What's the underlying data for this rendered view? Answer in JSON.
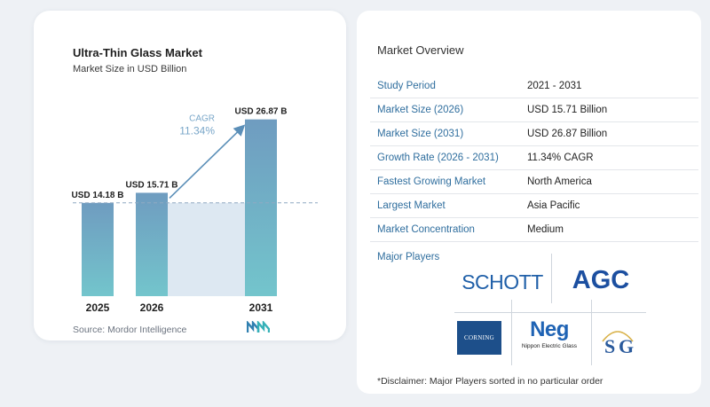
{
  "chart_data": {
    "type": "bar",
    "title": "Ultra-Thin Glass Market",
    "subtitle": "Market Size in USD Billion",
    "categories": [
      "2025",
      "2026",
      "2031"
    ],
    "values": [
      14.18,
      15.71,
      26.87
    ],
    "value_labels": [
      "USD 14.18 B",
      "USD 15.71 B",
      "USD 26.87 B"
    ],
    "ylim": [
      0,
      31
    ],
    "cagr_label": "CAGR",
    "cagr_value": "11.34%",
    "baseline_value": 14.18,
    "colors": {
      "bar_top": "#6f9cc0",
      "bar_bottom": "#73c5cc",
      "band": "#dde8f2",
      "arrow": "#5b8fb8",
      "cagr": "#7aa7c9"
    }
  },
  "source": "Source:  Mordor Intelligence",
  "source_logo_icon": "mordor-intelligence-logo-icon",
  "overview": {
    "title": "Market Overview",
    "rows": [
      {
        "key": "Study Period",
        "value": "2021 - 2031"
      },
      {
        "key": "Market Size (2026)",
        "value": "USD 15.71 Billion"
      },
      {
        "key": "Market Size (2031)",
        "value": "USD 26.87 Billion"
      },
      {
        "key": "Growth Rate (2026 - 2031)",
        "value": "11.34% CAGR"
      },
      {
        "key": "Fastest Growing Market",
        "value": "North America"
      },
      {
        "key": "Largest Market",
        "value": "Asia Pacific"
      },
      {
        "key": "Market Concentration",
        "value": "Medium"
      }
    ]
  },
  "players": {
    "label": "Major Players",
    "schott": "SCHOTT",
    "agc": "AGC",
    "corning": "CORNING",
    "neg_mark": "Neg",
    "neg_name": "Nippon Electric Glass",
    "sg_icon": "saint-gobain-logo-icon"
  },
  "disclaimer": "*Disclaimer: Major Players sorted in no particular order"
}
